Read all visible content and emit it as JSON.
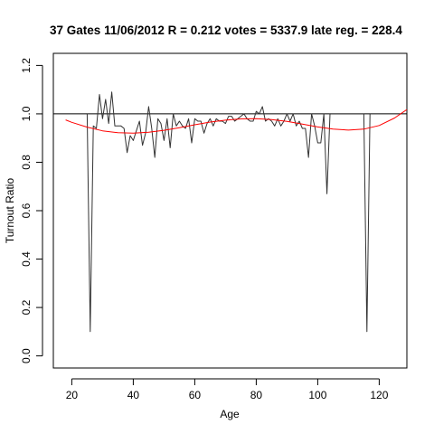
{
  "chart_data": {
    "type": "line",
    "title": "37 Gates 11/06/2012 R = 0.212 votes = 5337.9 late reg. = 228.4",
    "xlabel": "Age",
    "ylabel": "Turnout Ratio",
    "xlim": [
      14,
      129
    ],
    "ylim": [
      -0.05,
      1.25
    ],
    "x_ticks": [
      20,
      40,
      60,
      80,
      100,
      120
    ],
    "y_ticks": [
      0.0,
      0.2,
      0.4,
      0.6,
      0.8,
      1.0,
      1.2
    ],
    "x_tick_labels": [
      "20",
      "40",
      "60",
      "80",
      "100",
      "120"
    ],
    "y_tick_labels": [
      "0.0",
      "0.2",
      "0.4",
      "0.6",
      "0.8",
      "1.0",
      "1.2"
    ],
    "reference_line": {
      "y": 1.0,
      "color": "#000000"
    },
    "series": [
      {
        "color": "#333333",
        "x": [
          25,
          26,
          27,
          28,
          29,
          30,
          31,
          32,
          33,
          34,
          35,
          36,
          37,
          38,
          39,
          40,
          41,
          42,
          43,
          44,
          45,
          46,
          47,
          48,
          49,
          50,
          51,
          52,
          53,
          54,
          55,
          56,
          57,
          58,
          59,
          60,
          61,
          62,
          63,
          64,
          65,
          66,
          67,
          68,
          69,
          70,
          71,
          72,
          73,
          74,
          75,
          76,
          77,
          78,
          79,
          80,
          81,
          82,
          83,
          84,
          85,
          86,
          87,
          88,
          89,
          90,
          91,
          92,
          93,
          94,
          95,
          96,
          97,
          98,
          99,
          100,
          101,
          102,
          103,
          104,
          115,
          116,
          117
        ],
        "y": [
          1.0,
          0.1,
          0.95,
          0.94,
          1.08,
          0.98,
          1.06,
          0.96,
          1.09,
          0.95,
          0.95,
          0.95,
          0.94,
          0.84,
          0.91,
          0.89,
          0.93,
          0.97,
          0.87,
          0.92,
          1.03,
          0.94,
          0.82,
          0.98,
          0.96,
          0.89,
          0.98,
          0.86,
          1.0,
          0.95,
          0.97,
          0.95,
          0.94,
          0.98,
          0.88,
          0.98,
          0.97,
          0.97,
          0.92,
          0.96,
          0.98,
          0.95,
          0.98,
          0.97,
          0.97,
          0.96,
          0.99,
          0.99,
          0.97,
          0.98,
          0.99,
          1.0,
          0.98,
          0.97,
          0.97,
          1.01,
          1.0,
          1.03,
          0.97,
          0.98,
          0.97,
          0.95,
          0.98,
          0.95,
          0.97,
          1.0,
          0.97,
          1.0,
          0.95,
          0.97,
          0.94,
          0.94,
          0.82,
          1.0,
          0.95,
          0.88,
          0.88,
          1.0,
          0.67,
          1.0,
          1.0,
          0.1,
          1.0
        ]
      },
      {
        "color": "#ff0000",
        "x": [
          18,
          20,
          25,
          30,
          35,
          40,
          45,
          50,
          55,
          60,
          65,
          70,
          75,
          80,
          85,
          90,
          95,
          100,
          105,
          110,
          115,
          120,
          125,
          129
        ],
        "y": [
          0.975,
          0.965,
          0.945,
          0.93,
          0.922,
          0.92,
          0.924,
          0.932,
          0.943,
          0.955,
          0.966,
          0.974,
          0.979,
          0.98,
          0.976,
          0.969,
          0.958,
          0.946,
          0.937,
          0.933,
          0.937,
          0.952,
          0.983,
          1.018
        ]
      }
    ]
  }
}
